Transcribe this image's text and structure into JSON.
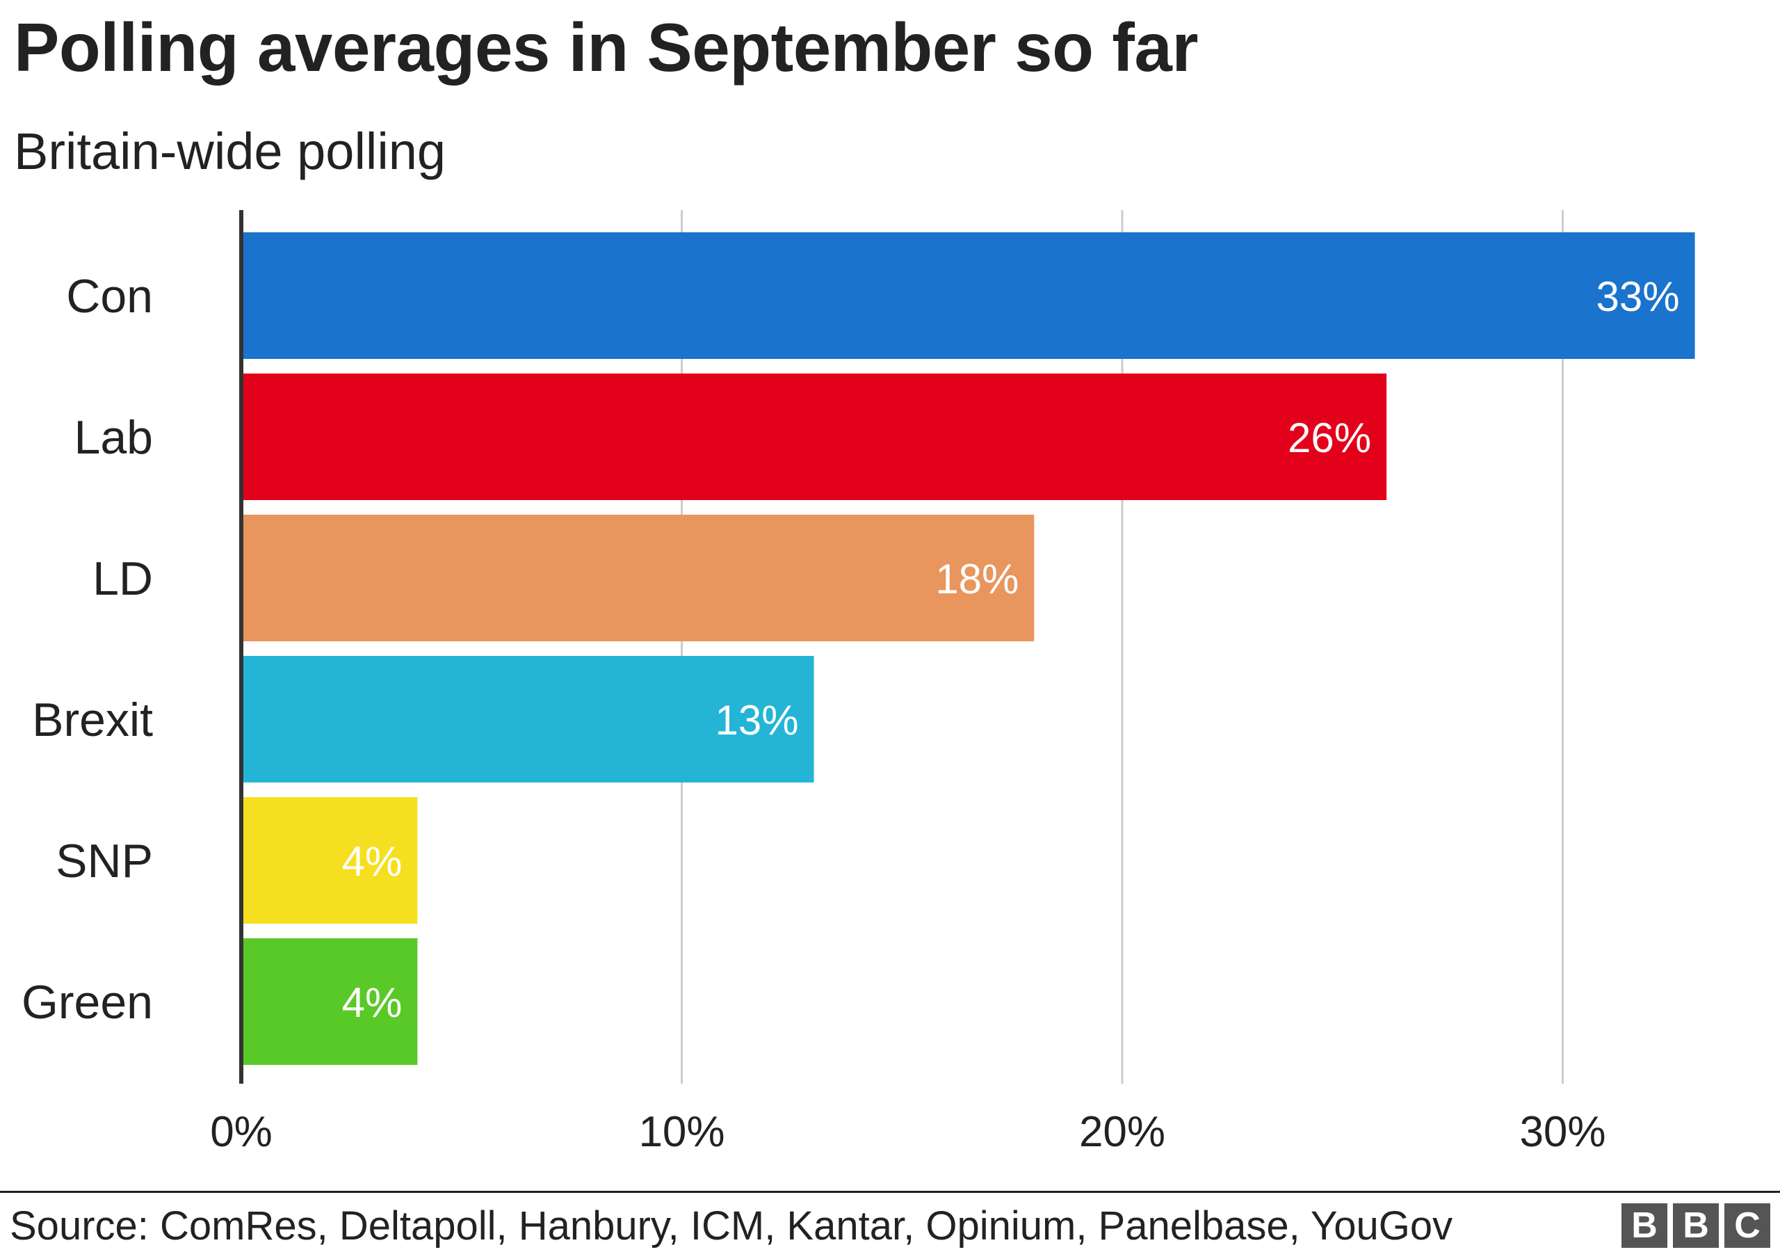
{
  "header": {
    "title": "Polling averages in September so far",
    "subtitle": "Britain-wide polling"
  },
  "footer": {
    "source": "Source: ComRes, Deltapoll, Hanbury, ICM, Kantar, Opinium, Panelbase, YouGov",
    "logo_letters": [
      "B",
      "B",
      "C"
    ]
  },
  "chart_data": {
    "type": "bar",
    "orientation": "horizontal",
    "title": "Polling averages in September so far",
    "subtitle": "Britain-wide polling",
    "categories": [
      "Con",
      "Lab",
      "LD",
      "Brexit",
      "SNP",
      "Green"
    ],
    "values": [
      33,
      26,
      18,
      13,
      4,
      4
    ],
    "value_labels": [
      "33%",
      "26%",
      "18%",
      "13%",
      "4%",
      "4%"
    ],
    "colors": [
      "#1a73cc",
      "#e3001b",
      "#e8955e",
      "#24b5d6",
      "#f6df20",
      "#59c927"
    ],
    "x_ticks": [
      0,
      10,
      20,
      30
    ],
    "x_tick_labels": [
      "0%",
      "10%",
      "20%",
      "30%"
    ],
    "xlim": [
      0,
      35
    ],
    "grid": true,
    "legend": false
  }
}
